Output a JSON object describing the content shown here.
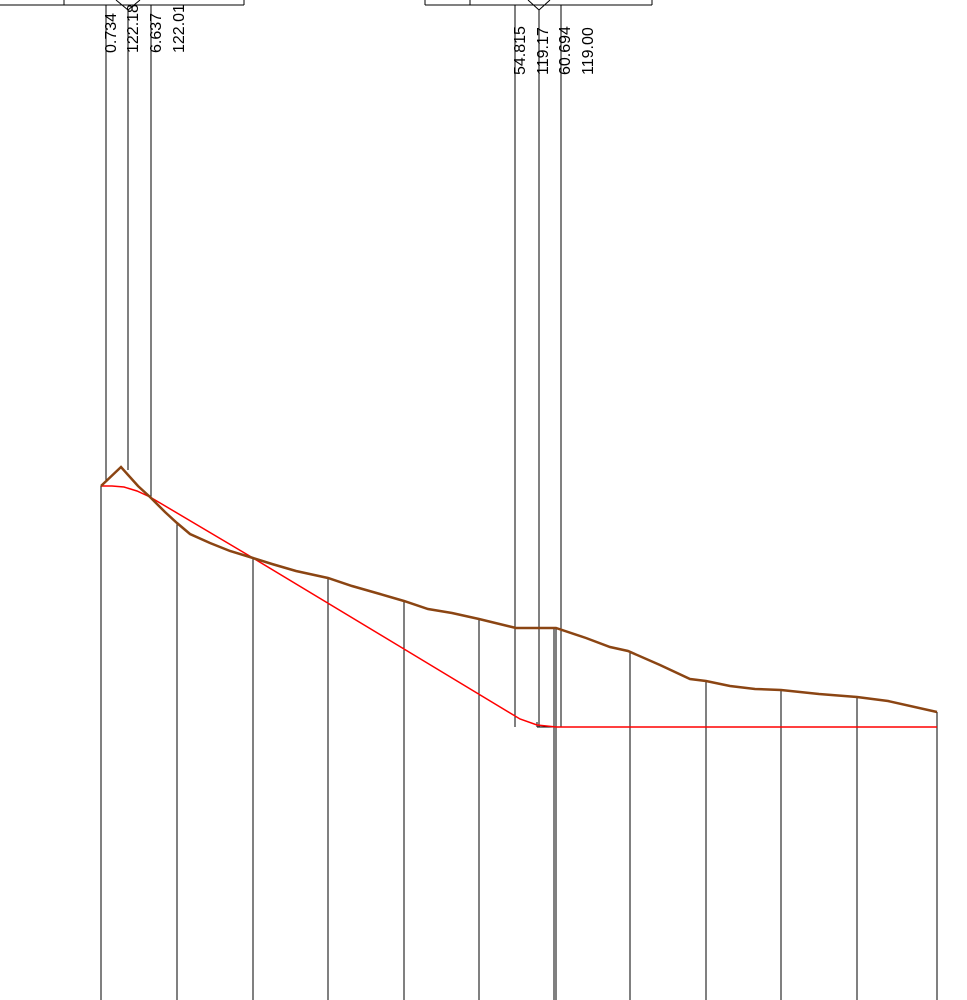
{
  "profile": {
    "annotations_left": [
      "0.734",
      "122.18",
      "6.637",
      "122.01"
    ],
    "annotations_right": [
      "54.815",
      "119.17",
      "60.694",
      "119.00"
    ]
  },
  "colors": {
    "ground_line": "#8B4513",
    "design_line": "#FF0000",
    "grid_line": "#000000",
    "background": "#FFFFFF"
  }
}
